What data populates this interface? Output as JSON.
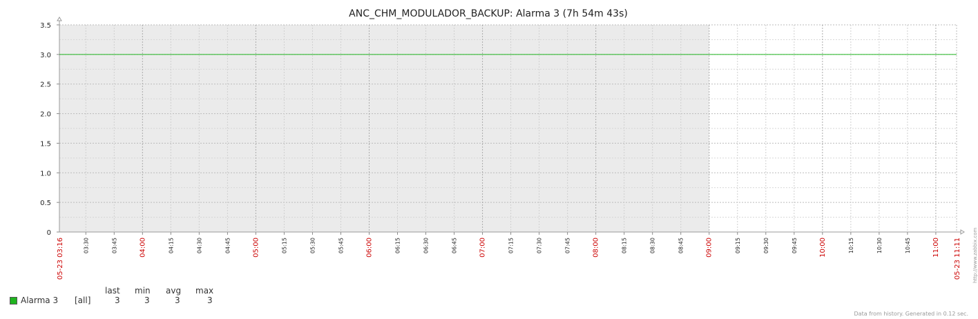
{
  "chart_data": {
    "type": "line",
    "title": "ANC_CHM_MODULADOR_BACKUP: Alarma 3 (7h 54m 43s)",
    "ylim": [
      0,
      3.5
    ],
    "yticks": [
      "0",
      "0.5",
      "1.0",
      "1.5",
      "2.0",
      "2.5",
      "3.0",
      "3.5"
    ],
    "x_range": [
      "05-23 03:16",
      "05-23 11:11"
    ],
    "x_start_label": "05-23 03:16",
    "x_end_label": "05-23 11:11",
    "xticks": [
      {
        "label": "03:30",
        "major": false
      },
      {
        "label": "03:45",
        "major": false
      },
      {
        "label": "04:00",
        "major": true
      },
      {
        "label": "04:15",
        "major": false
      },
      {
        "label": "04:30",
        "major": false
      },
      {
        "label": "04:45",
        "major": false
      },
      {
        "label": "05:00",
        "major": true
      },
      {
        "label": "05:15",
        "major": false
      },
      {
        "label": "05:30",
        "major": false
      },
      {
        "label": "05:45",
        "major": false
      },
      {
        "label": "06:00",
        "major": true
      },
      {
        "label": "06:15",
        "major": false
      },
      {
        "label": "06:30",
        "major": false
      },
      {
        "label": "06:45",
        "major": false
      },
      {
        "label": "07:00",
        "major": true
      },
      {
        "label": "07:15",
        "major": false
      },
      {
        "label": "07:30",
        "major": false
      },
      {
        "label": "07:45",
        "major": false
      },
      {
        "label": "08:00",
        "major": true
      },
      {
        "label": "08:15",
        "major": false
      },
      {
        "label": "08:30",
        "major": false
      },
      {
        "label": "08:45",
        "major": false
      },
      {
        "label": "09:00",
        "major": true
      },
      {
        "label": "09:15",
        "major": false
      },
      {
        "label": "09:30",
        "major": false
      },
      {
        "label": "09:45",
        "major": false
      },
      {
        "label": "10:00",
        "major": true
      },
      {
        "label": "10:15",
        "major": false
      },
      {
        "label": "10:30",
        "major": false
      },
      {
        "label": "10:45",
        "major": false
      },
      {
        "label": "11:00",
        "major": true
      }
    ],
    "shaded_until": "09:00",
    "grid": true,
    "series": [
      {
        "name": "Alarma 3",
        "color": "#1fb41f",
        "x": [
          "05-23 03:16",
          "05-23 11:11"
        ],
        "values": [
          3,
          3
        ]
      }
    ],
    "colors": {
      "major_tick_label": "#cc0000",
      "minor_tick_label": "#222222",
      "shade": "#ebebeb",
      "line": "#1fb41f"
    }
  },
  "legend": {
    "headers": {
      "last": "last",
      "min": "min",
      "avg": "avg",
      "max": "max"
    },
    "items": [
      {
        "name": "Alarma 3",
        "scope": "[all]",
        "last": "3",
        "min": "3",
        "avg": "3",
        "max": "3",
        "color": "#1fb41f"
      }
    ]
  },
  "footer": "Data from history. Generated in 0.12 sec.",
  "side_url": "http://www.zabbix.com"
}
